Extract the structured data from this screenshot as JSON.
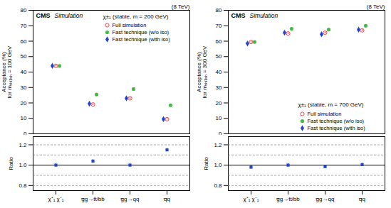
{
  "chart_data": [
    {
      "type": "scatter",
      "ylabel": "Acceptance (%)\nfor mₜₕᵣₑₛₕ = 100 GeV",
      "annotations": [
        "CMS",
        "Simulation",
        "χ±₁ (stable, m = 200 GeV)",
        "(8 TeV)"
      ],
      "categories": [
        "χ⁺₁ χ⁻₁",
        "g̅g→tt/bb",
        "g̅g→qq",
        "q̅q"
      ],
      "series": [
        {
          "name": "Full simulation",
          "color": "#e8474c",
          "marker": "circle_open",
          "values": [
            44.0,
            19.0,
            23.0,
            9.5
          ],
          "errors": [
            0.5,
            0.5,
            0.5,
            0.4
          ]
        },
        {
          "name": "Fast technique (w/o iso)",
          "color": "#44bb44",
          "marker": "circle",
          "values": [
            44.0,
            25.5,
            29.0,
            18.5
          ],
          "errors": [
            0.5,
            0.5,
            0.5,
            0.4
          ]
        },
        {
          "name": "Fast technique (with iso)",
          "color": "#2244cc",
          "marker": "diamond",
          "values": [
            44.0,
            19.5,
            23.0,
            9.5
          ],
          "errors": [
            0.5,
            0.5,
            0.5,
            0.4
          ]
        }
      ],
      "ylim": [
        0,
        80
      ],
      "yticks": [
        0,
        10,
        20,
        30,
        40,
        50,
        60,
        70,
        80
      ],
      "legend": "upper right",
      "tick_labels": "y"
    },
    {
      "type": "scatter",
      "ylabel": "Ratio",
      "categories": [
        "χ⁺₁ χ⁻₁",
        "g̅g→tt/bb",
        "g̅g→qq",
        "q̅q"
      ],
      "series": [
        {
          "color": "#2244cc",
          "marker": "square",
          "values": [
            1.0,
            1.04,
            1.0,
            1.15
          ],
          "errors": [
            0.015,
            0.015,
            0.015,
            0.015
          ]
        }
      ],
      "hlines": [
        {
          "value": 0.8,
          "color": "gray",
          "line_style": "dashed"
        },
        {
          "value": 0.9,
          "color": "gray",
          "line_style": "dashed"
        },
        {
          "value": 1.0,
          "color": "black",
          "line_style": "solid"
        },
        {
          "value": 1.1,
          "color": "gray",
          "line_style": "dashed"
        },
        {
          "value": 1.2,
          "color": "gray",
          "line_style": "dashed"
        }
      ],
      "ylim": [
        0.75,
        1.28
      ],
      "yticks": [
        0.8,
        {
          "value": 1,
          "label": "1.0"
        },
        1.2
      ]
    },
    {
      "type": "scatter",
      "ylabel": "Acceptance (%)\nfor mₜₕᵣₑₛₕ = 300 GeV",
      "annotations": [
        "CMS",
        "Simulation",
        "χ±₁ (stable, m = 700 GeV)",
        "(8 TeV)"
      ],
      "categories": [
        "χ⁺₁ χ⁻₁",
        "g̅g→tt/bb",
        "g̅g→qq",
        "q̅q"
      ],
      "series": [
        {
          "name": "Full simulation",
          "color": "#e8474c",
          "marker": "circle_open",
          "values": [
            59.5,
            65.0,
            65.5,
            67.0
          ],
          "errors": [
            0.5,
            0.5,
            0.5,
            0.5
          ]
        },
        {
          "name": "Fast technique (w/o iso)",
          "color": "#44bb44",
          "marker": "circle",
          "values": [
            59.5,
            68.0,
            67.5,
            70.0
          ],
          "errors": [
            0.5,
            0.5,
            0.5,
            0.5
          ]
        },
        {
          "name": "Fast technique (with iso)",
          "color": "#2244cc",
          "marker": "diamond",
          "values": [
            58.5,
            65.5,
            64.5,
            67.5
          ],
          "errors": [
            0.5,
            0.5,
            0.5,
            0.5
          ]
        }
      ],
      "ylim": [
        0,
        80
      ],
      "yticks": [
        0,
        10,
        20,
        30,
        40,
        50,
        60,
        70,
        80
      ],
      "legend": "lower right",
      "tick_labels": "y"
    },
    {
      "type": "scatter",
      "ylabel": "Ratio",
      "categories": [
        "χ⁺₁ χ⁻₁",
        "g̅g→tt/bb",
        "g̅g→qq",
        "q̅q"
      ],
      "series": [
        {
          "color": "#2244cc",
          "marker": "square",
          "values": [
            0.98,
            1.0,
            0.985,
            1.005
          ],
          "errors": [
            0.015,
            0.015,
            0.015,
            0.015
          ]
        }
      ],
      "hlines": [
        {
          "value": 0.8,
          "color": "gray",
          "line_style": "dashed"
        },
        {
          "value": 0.9,
          "color": "gray",
          "line_style": "dashed"
        },
        {
          "value": 1.0,
          "color": "black",
          "line_style": "solid"
        },
        {
          "value": 1.1,
          "color": "gray",
          "line_style": "dashed"
        },
        {
          "value": 1.2,
          "color": "gray",
          "line_style": "dashed"
        }
      ],
      "ylim": [
        0.75,
        1.28
      ],
      "yticks": [
        0.8,
        {
          "value": 1,
          "label": "1.0"
        },
        1.2
      ]
    }
  ]
}
